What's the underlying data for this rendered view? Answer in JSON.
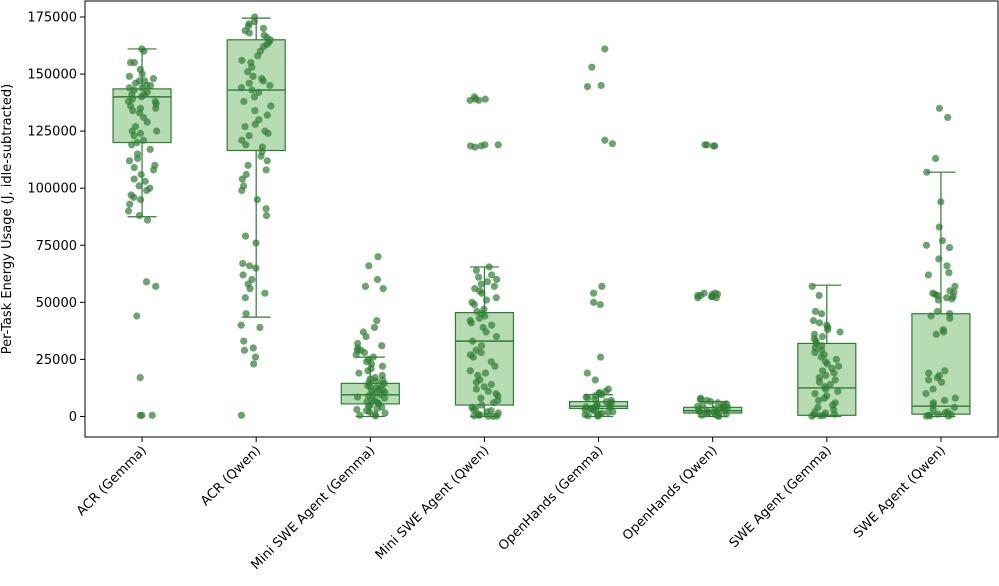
{
  "chart_data": {
    "type": "box",
    "title": "",
    "xlabel": "",
    "ylabel": "Per-Task Energy Usage (J, idle-subtracted)",
    "ylim": [
      -9000,
      182000
    ],
    "yticks": [
      0,
      25000,
      50000,
      75000,
      100000,
      125000,
      150000,
      175000
    ],
    "ytick_labels": [
      "0",
      "25000",
      "50000",
      "75000",
      "100000",
      "125000",
      "150000",
      "175000"
    ],
    "grid": false,
    "colors": {
      "box_fill": "#b7dcb4",
      "box_edge": "#2e7d32",
      "point": "#2e7d32"
    },
    "categories": [
      "ACR (Gemma)",
      "ACR (Qwen)",
      "Mini SWE Agent (Gemma)",
      "Mini SWE Agent (Qwen)",
      "OpenHands (Gemma)",
      "OpenHands (Qwen)",
      "SWE Agent (Gemma)",
      "SWE Agent (Qwen)"
    ],
    "boxes": [
      {
        "q1": 120000,
        "median": 140000,
        "q3": 143500,
        "whisker_low": 87500,
        "whisker_high": 161000
      },
      {
        "q1": 116500,
        "median": 143000,
        "q3": 165000,
        "whisker_low": 43500,
        "whisker_high": 174500
      },
      {
        "q1": 5500,
        "median": 9500,
        "q3": 14500,
        "whisker_low": 0,
        "whisker_high": 26000
      },
      {
        "q1": 5000,
        "median": 33000,
        "q3": 45500,
        "whisker_low": 0,
        "whisker_high": 65500
      },
      {
        "q1": 3500,
        "median": 4500,
        "q3": 6500,
        "whisker_low": 0,
        "whisker_high": 9500
      },
      {
        "q1": 1500,
        "median": 2500,
        "q3": 4000,
        "whisker_low": 0,
        "whisker_high": 6500
      },
      {
        "q1": 500,
        "median": 12500,
        "q3": 32000,
        "whisker_low": 0,
        "whisker_high": 57500
      },
      {
        "q1": 1000,
        "median": 4500,
        "q3": 45000,
        "whisker_low": 0,
        "whisker_high": 107000
      }
    ],
    "points": [
      [
        161000,
        160000,
        155000,
        155000,
        152000,
        150000,
        149000,
        148000,
        147000,
        147000,
        146000,
        145000,
        145000,
        144000,
        144000,
        143000,
        142000,
        141000,
        141000,
        140000,
        139000,
        138000,
        138000,
        137000,
        136000,
        135000,
        135000,
        134000,
        133000,
        131000,
        129000,
        127000,
        125000,
        125000,
        124000,
        123000,
        121000,
        120000,
        119000,
        117000,
        115000,
        113000,
        112000,
        110000,
        109000,
        108000,
        106000,
        104000,
        103000,
        101000,
        100000,
        99000,
        97000,
        96000,
        95000,
        93000,
        90000,
        88000,
        86000,
        59000,
        57000,
        44000,
        17000,
        500,
        500,
        500
      ],
      [
        175000,
        173000,
        172000,
        171000,
        170000,
        169000,
        168000,
        167000,
        166000,
        165000,
        164000,
        163000,
        162000,
        160000,
        158000,
        156000,
        155000,
        153000,
        151000,
        149000,
        148000,
        147000,
        146000,
        145000,
        144000,
        143000,
        142000,
        140000,
        138000,
        136000,
        134000,
        132000,
        130000,
        128000,
        127000,
        125000,
        124000,
        123000,
        121000,
        119000,
        118000,
        116000,
        114000,
        112000,
        110000,
        108000,
        106000,
        104000,
        101000,
        99000,
        95000,
        91000,
        88000,
        79000,
        76000,
        67000,
        66000,
        65000,
        62000,
        60000,
        58000,
        56000,
        54000,
        52000,
        45000,
        40000,
        39000,
        33000,
        30000,
        29000,
        26000,
        23000,
        500
      ],
      [
        70000,
        66000,
        60000,
        57000,
        56000,
        42000,
        39000,
        37000,
        35000,
        32000,
        31000,
        30000,
        29000,
        29000,
        28000,
        27000,
        26000,
        25000,
        24000,
        23000,
        22000,
        21000,
        20000,
        19000,
        18000,
        17000,
        16500,
        16000,
        15500,
        15000,
        14500,
        14000,
        13500,
        13000,
        12500,
        12000,
        11500,
        11000,
        10500,
        10000,
        9500,
        9000,
        8500,
        8000,
        7500,
        7000,
        6500,
        6000,
        5500,
        5000,
        4500,
        4000,
        3500,
        3000,
        2500,
        2000,
        1500,
        1000,
        500,
        200
      ],
      [
        140000,
        139000,
        139000,
        138500,
        138500,
        119000,
        119000,
        118500,
        118500,
        118000,
        65500,
        64000,
        62000,
        61000,
        60000,
        59000,
        58000,
        57000,
        56000,
        55000,
        54000,
        52000,
        51000,
        50000,
        49000,
        47000,
        46000,
        45000,
        44000,
        43000,
        42000,
        41000,
        40000,
        39000,
        37000,
        35000,
        33000,
        31000,
        29000,
        28000,
        27000,
        26000,
        24000,
        22000,
        20000,
        19000,
        18000,
        16000,
        15000,
        14000,
        13000,
        12000,
        11000,
        10000,
        9000,
        8000,
        7000,
        6000,
        5000,
        4000,
        3500,
        3000,
        2500,
        2000,
        1500,
        1000,
        700,
        500,
        300,
        200,
        100,
        0
      ],
      [
        161000,
        153000,
        145000,
        144500,
        121000,
        119500,
        57000,
        54000,
        50000,
        49000,
        26000,
        19000,
        16000,
        12000,
        11000,
        10500,
        10000,
        9500,
        9000,
        8500,
        8000,
        7500,
        7000,
        6500,
        6000,
        5500,
        5000,
        4500,
        4200,
        4000,
        3800,
        3500,
        3200,
        3000,
        2800,
        2500,
        2000,
        1800,
        1500,
        1000,
        800,
        500,
        300,
        100
      ],
      [
        119000,
        119000,
        118500,
        118500,
        54000,
        54000,
        53500,
        53500,
        53000,
        53000,
        52500,
        52500,
        52000,
        52000,
        8000,
        7500,
        7000,
        6500,
        6000,
        5500,
        5000,
        4800,
        4500,
        4200,
        4000,
        3800,
        3500,
        3200,
        3000,
        2800,
        2500,
        2200,
        2000,
        1800,
        1500,
        1200,
        1000,
        800,
        500,
        200,
        100
      ],
      [
        57000,
        53000,
        46000,
        45000,
        42000,
        41000,
        40000,
        39000,
        38000,
        37000,
        36000,
        35000,
        34000,
        33000,
        32000,
        31000,
        30000,
        29000,
        28000,
        27000,
        26000,
        25000,
        24000,
        23000,
        22000,
        21000,
        20000,
        19000,
        18000,
        17000,
        16000,
        15000,
        14000,
        13000,
        12000,
        11000,
        10000,
        9000,
        8000,
        7000,
        6000,
        5000,
        4000,
        3000,
        2000,
        1500,
        1000,
        800,
        500,
        300,
        100
      ],
      [
        135000,
        131000,
        113000,
        107000,
        94000,
        83000,
        77000,
        75000,
        74000,
        69000,
        66000,
        63000,
        62000,
        57000,
        55000,
        54500,
        54000,
        53500,
        53000,
        52500,
        52000,
        51500,
        51000,
        46000,
        45000,
        44000,
        43000,
        38000,
        37000,
        36000,
        20000,
        19000,
        18000,
        17000,
        16000,
        15000,
        12000,
        10000,
        8000,
        7000,
        6000,
        5000,
        4000,
        3000,
        2000,
        1500,
        1000,
        800,
        500,
        300,
        200,
        100
      ]
    ]
  }
}
